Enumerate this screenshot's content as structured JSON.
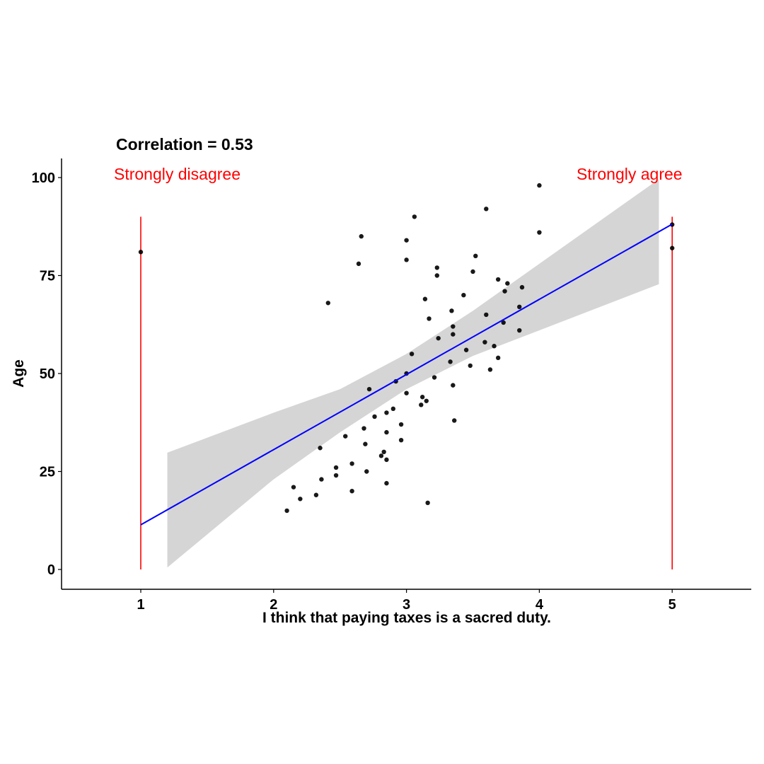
{
  "chart_data": {
    "type": "scatter",
    "title": "Correlation = 0.53",
    "xlabel": "I think that paying taxes is a sacred duty.",
    "ylabel": "Age",
    "xlim": [
      0.4,
      5.6
    ],
    "ylim": [
      -5,
      105
    ],
    "x_ticks": [
      "1",
      "2",
      "3",
      "4",
      "5"
    ],
    "y_ticks": [
      "0",
      "25",
      "50",
      "75",
      "100"
    ],
    "x_tick_values": [
      1,
      2,
      3,
      4,
      5
    ],
    "y_tick_values": [
      0,
      25,
      50,
      75,
      100
    ],
    "grid": false,
    "annotations": {
      "left": "Strongly disagree",
      "right": "Strongly agree"
    },
    "reference_lines": {
      "x": [
        1,
        5
      ],
      "y_range": [
        0,
        90
      ],
      "color": "#ff0000"
    },
    "regression": {
      "color": "#0000ff",
      "start": {
        "x": 1,
        "y": 11.4
      },
      "end": {
        "x": 5,
        "y": 88.1
      },
      "ribbon_color": "#d3d3d3",
      "ribbon": [
        {
          "x": 1.2,
          "lo": 0.5,
          "hi": 29.8
        },
        {
          "x": 2.0,
          "lo": 23.0,
          "hi": 40.0
        },
        {
          "x": 2.5,
          "lo": 35.0,
          "hi": 46.0
        },
        {
          "x": 3.0,
          "lo": 46.0,
          "hi": 55.0
        },
        {
          "x": 3.5,
          "lo": 54.5,
          "hi": 66.0
        },
        {
          "x": 4.0,
          "lo": 61.0,
          "hi": 78.0
        },
        {
          "x": 4.9,
          "lo": 72.8,
          "hi": 99.6
        }
      ]
    },
    "points": [
      {
        "x": 1.0,
        "y": 81
      },
      {
        "x": 2.41,
        "y": 68
      },
      {
        "x": 2.1,
        "y": 15
      },
      {
        "x": 2.15,
        "y": 21
      },
      {
        "x": 2.2,
        "y": 18
      },
      {
        "x": 2.32,
        "y": 19
      },
      {
        "x": 2.35,
        "y": 31
      },
      {
        "x": 2.36,
        "y": 23
      },
      {
        "x": 2.47,
        "y": 24
      },
      {
        "x": 2.47,
        "y": 26
      },
      {
        "x": 2.54,
        "y": 34
      },
      {
        "x": 2.59,
        "y": 20
      },
      {
        "x": 2.59,
        "y": 27
      },
      {
        "x": 2.66,
        "y": 85
      },
      {
        "x": 2.64,
        "y": 78
      },
      {
        "x": 2.68,
        "y": 36
      },
      {
        "x": 2.69,
        "y": 32
      },
      {
        "x": 2.7,
        "y": 25
      },
      {
        "x": 2.72,
        "y": 46
      },
      {
        "x": 2.76,
        "y": 39
      },
      {
        "x": 2.81,
        "y": 29
      },
      {
        "x": 2.83,
        "y": 30
      },
      {
        "x": 2.85,
        "y": 28
      },
      {
        "x": 2.85,
        "y": 35
      },
      {
        "x": 2.85,
        "y": 40
      },
      {
        "x": 2.85,
        "y": 22
      },
      {
        "x": 2.9,
        "y": 41
      },
      {
        "x": 2.92,
        "y": 48
      },
      {
        "x": 2.96,
        "y": 37
      },
      {
        "x": 2.96,
        "y": 33
      },
      {
        "x": 3.0,
        "y": 84
      },
      {
        "x": 3.0,
        "y": 79
      },
      {
        "x": 3.0,
        "y": 50
      },
      {
        "x": 3.0,
        "y": 45
      },
      {
        "x": 3.04,
        "y": 55
      },
      {
        "x": 3.06,
        "y": 90
      },
      {
        "x": 3.12,
        "y": 44
      },
      {
        "x": 3.11,
        "y": 42
      },
      {
        "x": 3.15,
        "y": 43
      },
      {
        "x": 3.14,
        "y": 69
      },
      {
        "x": 3.16,
        "y": 17
      },
      {
        "x": 3.17,
        "y": 64
      },
      {
        "x": 3.21,
        "y": 49
      },
      {
        "x": 3.23,
        "y": 77
      },
      {
        "x": 3.23,
        "y": 75
      },
      {
        "x": 3.24,
        "y": 59
      },
      {
        "x": 3.33,
        "y": 53
      },
      {
        "x": 3.34,
        "y": 66
      },
      {
        "x": 3.35,
        "y": 62
      },
      {
        "x": 3.35,
        "y": 47
      },
      {
        "x": 3.35,
        "y": 60
      },
      {
        "x": 3.36,
        "y": 38
      },
      {
        "x": 3.43,
        "y": 70
      },
      {
        "x": 3.45,
        "y": 56
      },
      {
        "x": 3.48,
        "y": 52
      },
      {
        "x": 3.5,
        "y": 76
      },
      {
        "x": 3.52,
        "y": 80
      },
      {
        "x": 3.59,
        "y": 58
      },
      {
        "x": 3.6,
        "y": 92
      },
      {
        "x": 3.6,
        "y": 65
      },
      {
        "x": 3.63,
        "y": 51
      },
      {
        "x": 3.66,
        "y": 57
      },
      {
        "x": 3.69,
        "y": 74
      },
      {
        "x": 3.69,
        "y": 54
      },
      {
        "x": 3.73,
        "y": 63
      },
      {
        "x": 3.74,
        "y": 71
      },
      {
        "x": 3.76,
        "y": 73
      },
      {
        "x": 3.85,
        "y": 67
      },
      {
        "x": 3.85,
        "y": 61
      },
      {
        "x": 3.87,
        "y": 72
      },
      {
        "x": 4.0,
        "y": 98
      },
      {
        "x": 4.0,
        "y": 86
      },
      {
        "x": 5.0,
        "y": 88
      },
      {
        "x": 5.0,
        "y": 82
      }
    ]
  }
}
